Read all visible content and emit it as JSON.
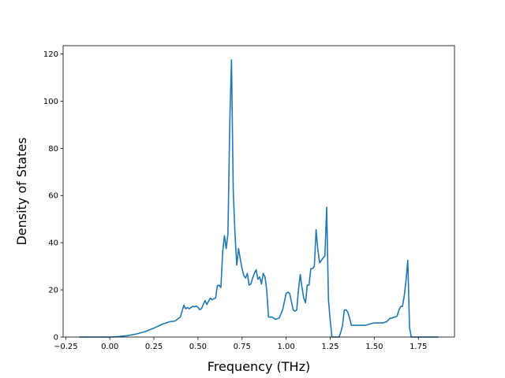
{
  "chart_data": {
    "type": "line",
    "title": "",
    "xlabel": "Frequency (THz)",
    "ylabel": "Density of States",
    "xlim": [
      -0.265,
      1.955
    ],
    "ylim": [
      0,
      123.5
    ],
    "grid": false,
    "line_color": "#1f77b4",
    "xticks": [
      {
        "value": -0.25,
        "label": "−0.25"
      },
      {
        "value": 0.0,
        "label": "0.00"
      },
      {
        "value": 0.25,
        "label": "0.25"
      },
      {
        "value": 0.5,
        "label": "0.50"
      },
      {
        "value": 0.75,
        "label": "0.75"
      },
      {
        "value": 1.0,
        "label": "1.00"
      },
      {
        "value": 1.25,
        "label": "1.25"
      },
      {
        "value": 1.5,
        "label": "1.50"
      },
      {
        "value": 1.75,
        "label": "1.75"
      }
    ],
    "yticks": [
      {
        "value": 0,
        "label": "0"
      },
      {
        "value": 20,
        "label": "20"
      },
      {
        "value": 40,
        "label": "40"
      },
      {
        "value": 60,
        "label": "60"
      },
      {
        "value": 80,
        "label": "80"
      },
      {
        "value": 100,
        "label": "100"
      },
      {
        "value": 120,
        "label": "120"
      }
    ],
    "series": [
      {
        "x": [
          -0.17,
          0.0,
          0.05,
          0.1,
          0.15,
          0.2,
          0.25,
          0.3,
          0.34,
          0.37,
          0.4,
          0.42,
          0.43,
          0.44,
          0.45,
          0.47,
          0.48,
          0.49,
          0.5,
          0.51,
          0.52,
          0.53,
          0.54,
          0.55,
          0.56,
          0.57,
          0.58,
          0.59,
          0.6,
          0.61,
          0.62,
          0.63,
          0.64,
          0.65,
          0.66,
          0.67,
          0.68,
          0.69,
          0.7,
          0.71,
          0.72,
          0.73,
          0.74,
          0.75,
          0.76,
          0.77,
          0.78,
          0.79,
          0.8,
          0.81,
          0.82,
          0.83,
          0.84,
          0.85,
          0.86,
          0.87,
          0.88,
          0.89,
          0.9,
          0.91,
          0.92,
          0.94,
          0.96,
          0.98,
          1.0,
          1.01,
          1.02,
          1.03,
          1.04,
          1.05,
          1.06,
          1.07,
          1.08,
          1.09,
          1.1,
          1.11,
          1.12,
          1.13,
          1.14,
          1.15,
          1.16,
          1.17,
          1.18,
          1.19,
          1.2,
          1.21,
          1.22,
          1.23,
          1.24,
          1.25,
          1.26,
          1.27,
          1.28,
          1.29,
          1.3,
          1.31,
          1.32,
          1.33,
          1.34,
          1.35,
          1.36,
          1.37,
          1.38,
          1.4,
          1.45,
          1.5,
          1.55,
          1.57,
          1.59,
          1.6,
          1.61,
          1.62,
          1.63,
          1.64,
          1.65,
          1.66,
          1.67,
          1.68,
          1.69,
          1.7,
          1.71,
          1.75,
          1.8,
          1.86
        ],
        "y": [
          0,
          0,
          0.2,
          0.6,
          1.3,
          2.3,
          3.8,
          5.5,
          6.5,
          6.8,
          8.5,
          13.5,
          12,
          12.5,
          12,
          13,
          12.8,
          13.2,
          12.6,
          11.6,
          12.1,
          13.8,
          15.5,
          13.8,
          15.2,
          16.5,
          15.8,
          16.2,
          16.6,
          21.8,
          22,
          21,
          36,
          43,
          37.5,
          44,
          90,
          117.5,
          62,
          43.5,
          30.5,
          37.5,
          33,
          29,
          26,
          25,
          27,
          22,
          22.5,
          25,
          27,
          28.5,
          24.5,
          25.5,
          22.5,
          27,
          25.5,
          20,
          8.5,
          8.5,
          8.5,
          7.5,
          8,
          11.5,
          18.5,
          19,
          18.5,
          15,
          11.5,
          11,
          11.5,
          20,
          26.5,
          21,
          16.5,
          14.5,
          22,
          22,
          29,
          29,
          30,
          45.5,
          37,
          31.5,
          32.5,
          33.5,
          34.5,
          55,
          16,
          7,
          0,
          0,
          0,
          0,
          0,
          2,
          5,
          11.5,
          11.5,
          10.5,
          8,
          5,
          5,
          5,
          5,
          6,
          6,
          6.5,
          8,
          8,
          8.5,
          8.5,
          9,
          11.5,
          13,
          13,
          17.5,
          24,
          32.5,
          4,
          0,
          0,
          0,
          0
        ]
      }
    ]
  }
}
